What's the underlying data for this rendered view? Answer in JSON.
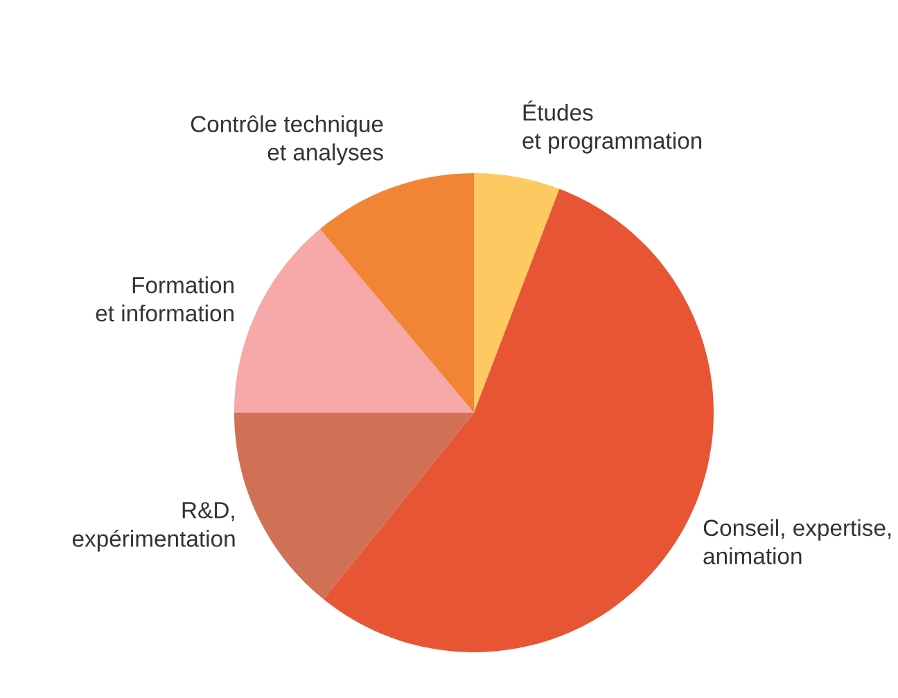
{
  "chart_data": {
    "type": "pie",
    "categories": [
      "Études\net programmation",
      "Conseil, expertise,\nanimation",
      "R&D,\nexpérimentation",
      "Formation\net information",
      "Contrôle technique\net analyses"
    ],
    "values": [
      5.8,
      55,
      14.2,
      13.9,
      11.1
    ],
    "colors": [
      "#fec961",
      "#e85535",
      "#d07055",
      "#f7a8a8",
      "#f28535"
    ]
  }
}
